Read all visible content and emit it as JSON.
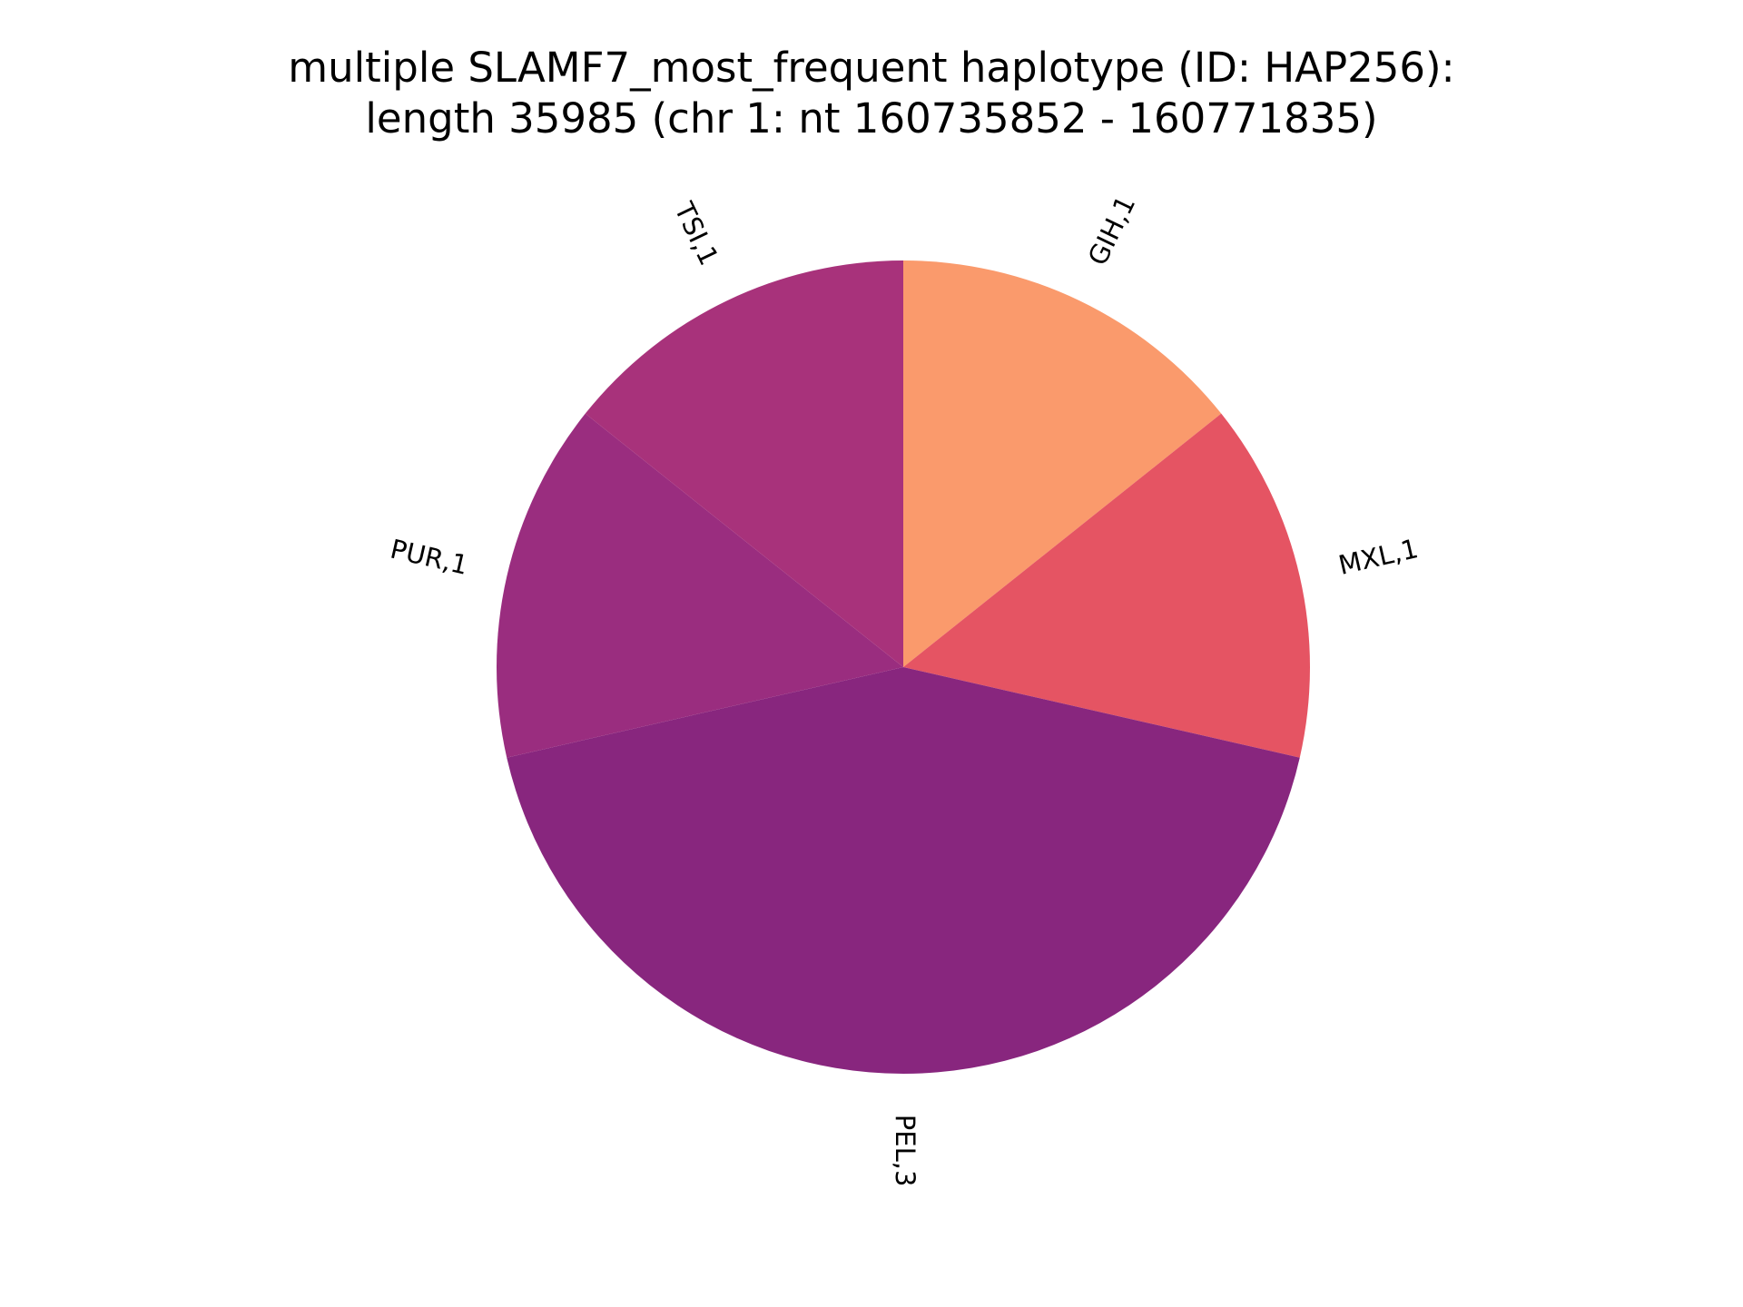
{
  "title_lines": [
    "multiple SLAMF7_most_frequent haplotype (ID: HAP256):",
    "length 35985 (chr 1: nt 160735852 - 160771835)"
  ],
  "chart_data": {
    "type": "pie",
    "title": "multiple SLAMF7_most_frequent haplotype (ID: HAP256):\nlength 35985 (chr 1: nt 160735852 - 160771835)",
    "start_angle_deg": 90,
    "direction": "clockwise",
    "slices": [
      {
        "category": "GIH",
        "value": 1,
        "label": "GIH,1",
        "color": "#fa9a6c"
      },
      {
        "category": "MXL",
        "value": 1,
        "label": "MXL,1",
        "color": "#e55463"
      },
      {
        "category": "PEL",
        "value": 3,
        "label": "PEL,3",
        "color": "#88267e"
      },
      {
        "category": "PUR",
        "value": 1,
        "label": "PUR,1",
        "color": "#9a2d7f"
      },
      {
        "category": "TSI",
        "value": 1,
        "label": "TSI,1",
        "color": "#a8327b"
      }
    ]
  }
}
